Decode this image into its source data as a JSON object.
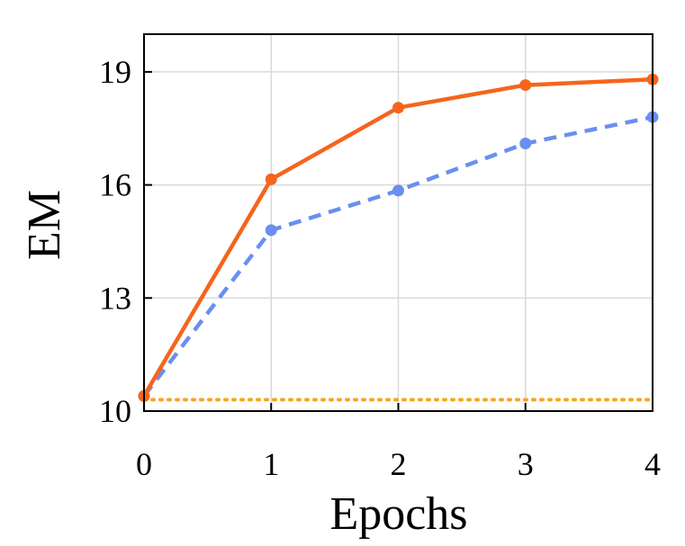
{
  "chart_data": {
    "type": "line",
    "title": "",
    "xlabel": "Epochs",
    "ylabel": "EM",
    "x": [
      0,
      1,
      2,
      3,
      4
    ],
    "xticks": [
      "0",
      "1",
      "2",
      "3",
      "4"
    ],
    "yticks": [
      "10",
      "13",
      "16",
      "19"
    ],
    "xlim": [
      0,
      4
    ],
    "ylim": [
      10,
      20
    ],
    "grid": true,
    "series": [
      {
        "values": [
          10.4,
          16.15,
          18.05,
          18.65,
          18.8
        ],
        "color": "#f5651c",
        "style": "solid",
        "markers": true
      },
      {
        "values": [
          10.4,
          14.8,
          15.85,
          17.1,
          17.8
        ],
        "color": "#6a8ff0",
        "style": "dashed",
        "markers": true
      },
      {
        "values": [
          10.3,
          10.3,
          10.3,
          10.3,
          10.3
        ],
        "color": "#f5a623",
        "style": "dotted",
        "markers": false
      }
    ]
  }
}
